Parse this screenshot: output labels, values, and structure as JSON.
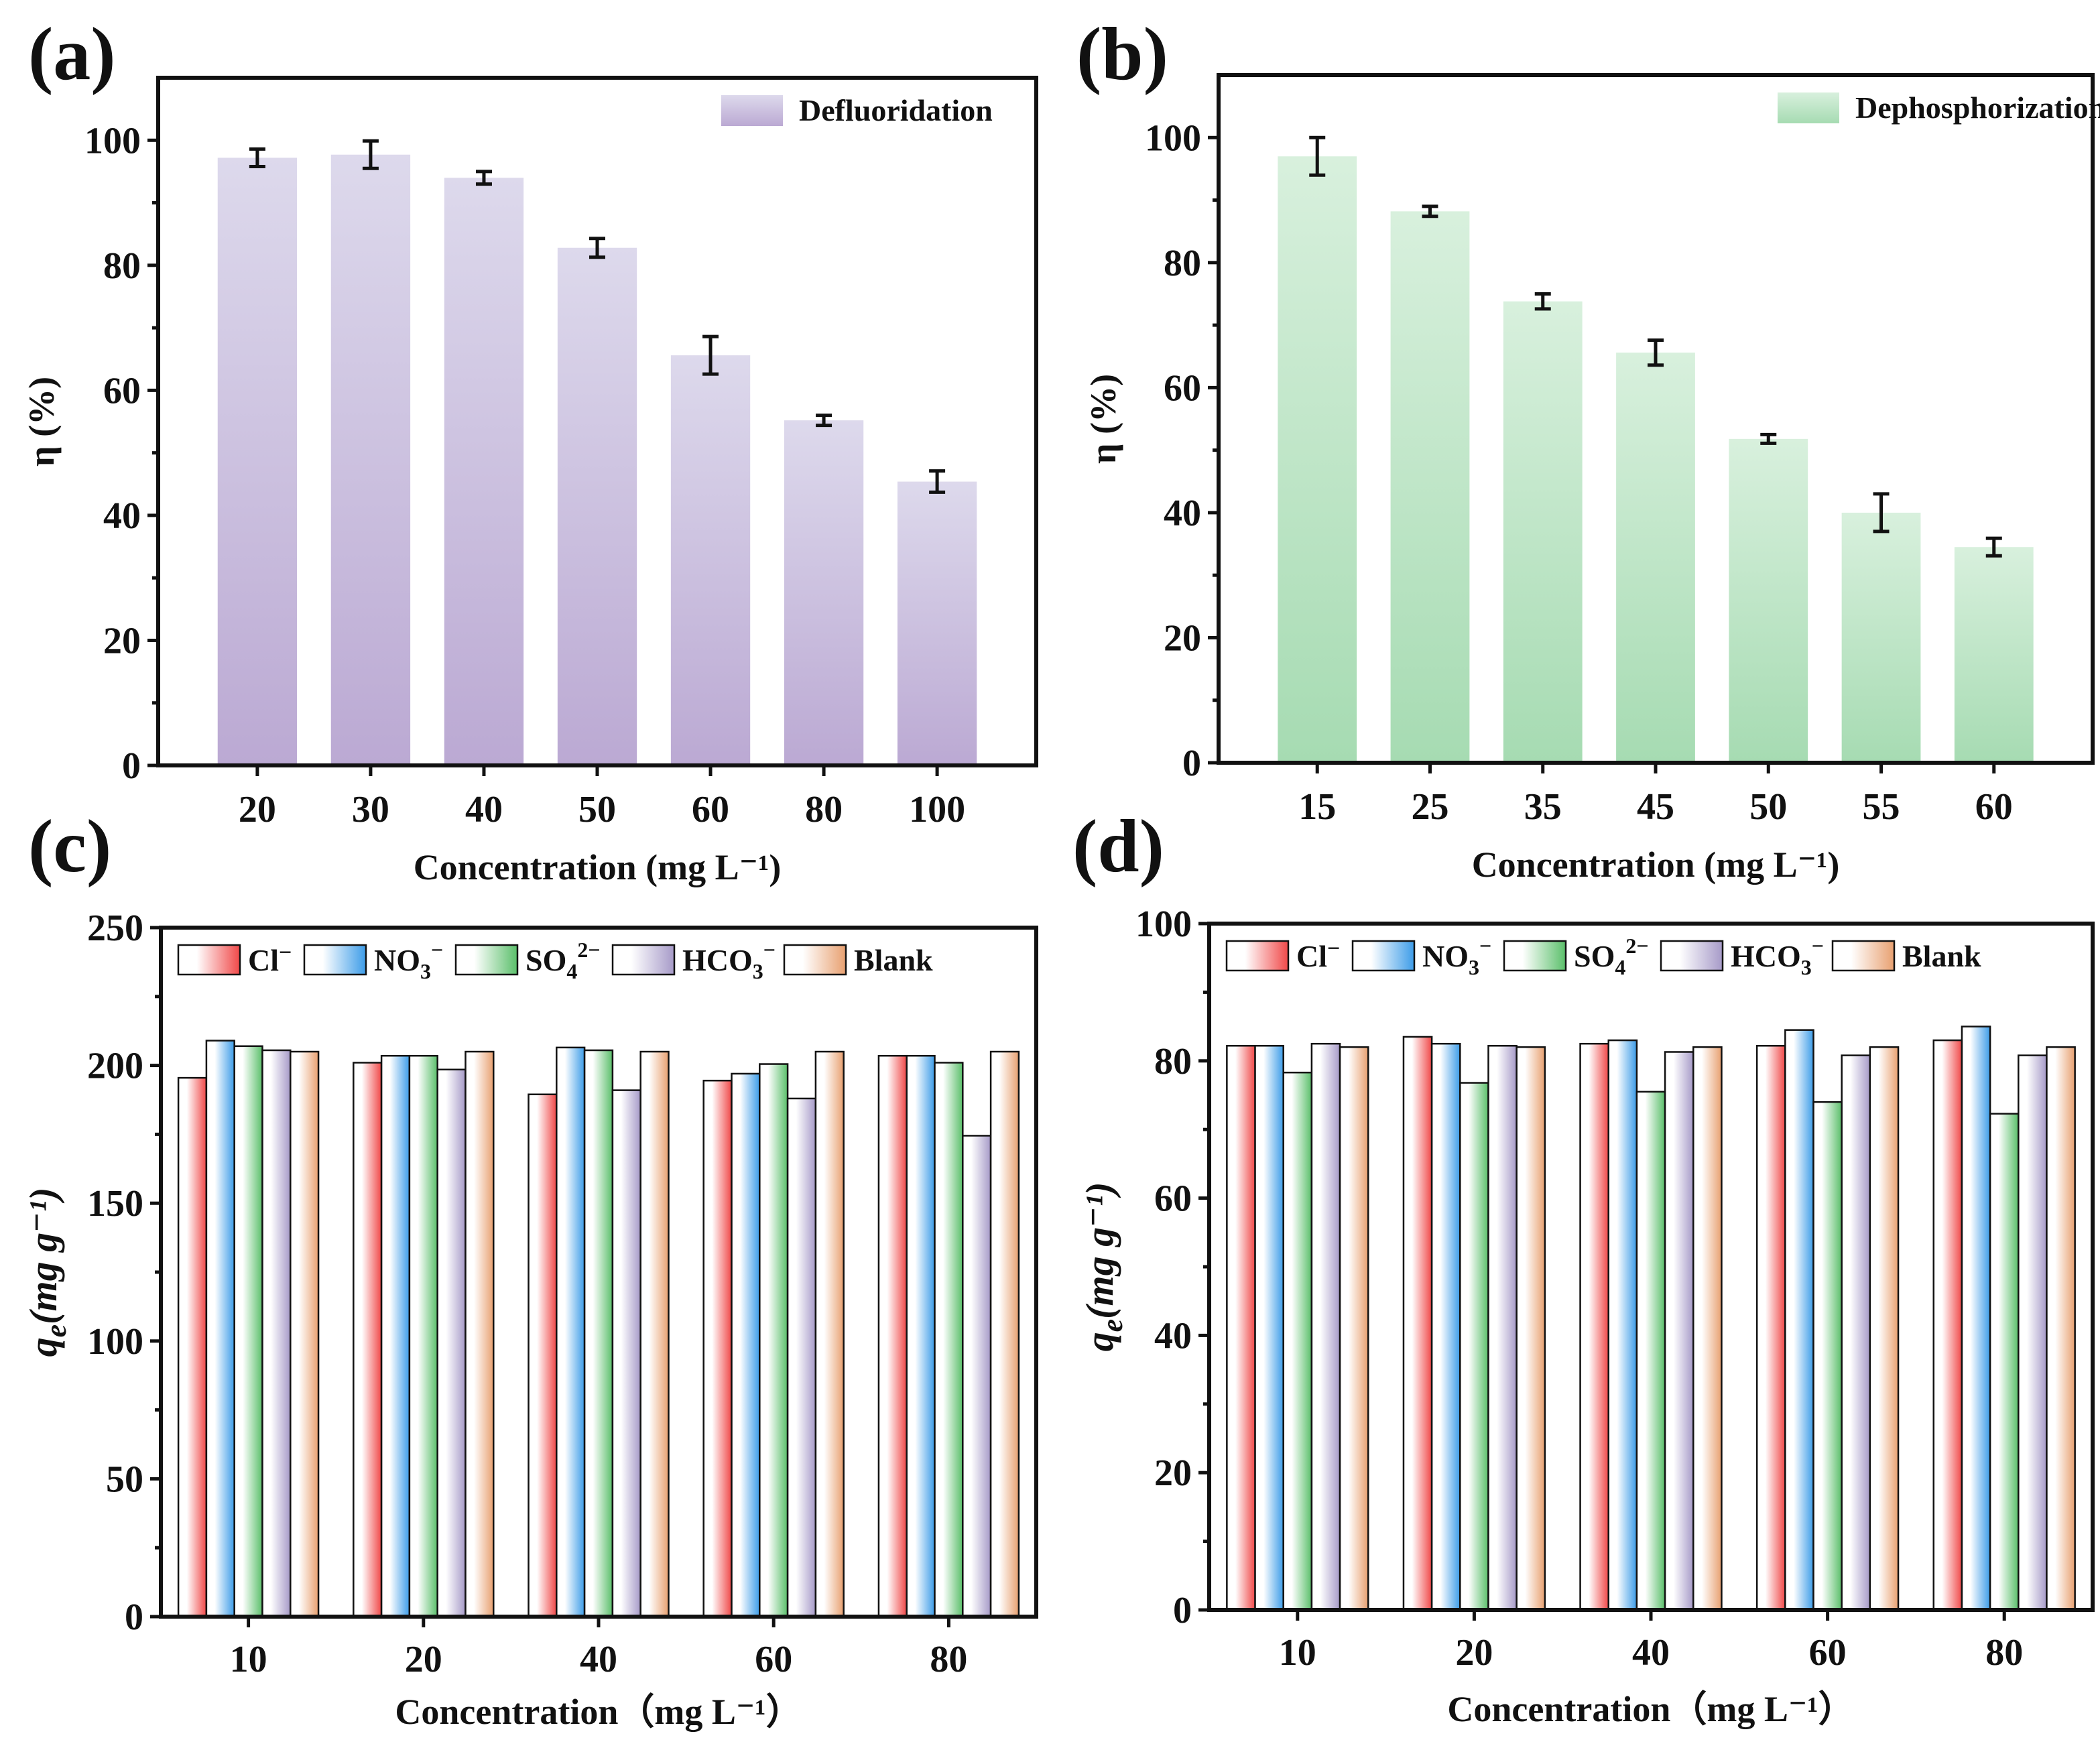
{
  "figure": {
    "panels": [
      "(a)",
      "(b)",
      "(c)",
      "(d)"
    ]
  },
  "chart_data": [
    {
      "id": "a",
      "type": "bar",
      "panel_label": "(a)",
      "title": "",
      "xlabel": "Concentration (mg L⁻¹)",
      "ylabel": "η (%)",
      "ylim": [
        0,
        110
      ],
      "yticks": [
        0,
        20,
        40,
        60,
        80,
        100
      ],
      "categories": [
        "20",
        "30",
        "40",
        "50",
        "60",
        "80",
        "100"
      ],
      "series": [
        {
          "name": "Defluoridation",
          "color_top": "#ddd9ec",
          "color_bottom": "#bba9d3",
          "values": [
            97.2,
            97.7,
            94.0,
            82.8,
            65.6,
            55.2,
            45.4
          ],
          "errors": [
            1.4,
            2.2,
            1.0,
            1.5,
            3.0,
            0.8,
            1.7
          ]
        }
      ],
      "legend": "top-right"
    },
    {
      "id": "b",
      "type": "bar",
      "panel_label": "(b)",
      "title": "",
      "xlabel": "Concentration (mg L⁻¹)",
      "ylabel": "η (%)",
      "ylim": [
        0,
        110
      ],
      "yticks": [
        0,
        20,
        40,
        60,
        80,
        100
      ],
      "categories": [
        "15",
        "25",
        "35",
        "45",
        "50",
        "55",
        "60"
      ],
      "series": [
        {
          "name": "Dephosphorization",
          "color_top": "#d8f0dd",
          "color_bottom": "#a6dbb2",
          "values": [
            97.0,
            88.2,
            73.8,
            65.6,
            51.8,
            40.0,
            34.5
          ],
          "errors": [
            3.0,
            0.8,
            1.2,
            2.0,
            0.7,
            3.0,
            1.4
          ]
        }
      ],
      "legend": "top-right"
    },
    {
      "id": "c",
      "type": "bar",
      "panel_label": "(c)",
      "title": "",
      "xlabel": "Concentration（mg L⁻¹）",
      "ylabel": "q",
      "ylabel_sub": "e",
      "ylabel_units": "(mg g⁻¹)",
      "ylim": [
        0,
        250
      ],
      "yticks": [
        0,
        50,
        100,
        150,
        200,
        250
      ],
      "categories": [
        "10",
        "20",
        "40",
        "60",
        "80"
      ],
      "series": [
        {
          "name": "Cl⁻",
          "base": "Cl",
          "sub": "",
          "sup": "−",
          "color": "#f04848",
          "values": [
            195.5,
            201.0,
            189.5,
            194.5,
            203.5
          ]
        },
        {
          "name": "NO₃⁻",
          "base": "NO",
          "sub": "3",
          "sup": "−",
          "color": "#3c9ce8",
          "values": [
            209.0,
            203.5,
            206.5,
            197.0,
            203.5
          ]
        },
        {
          "name": "SO₄²⁻",
          "base": "SO",
          "sub": "4",
          "sup": "2−",
          "color": "#5abf6a",
          "values": [
            207.0,
            203.5,
            205.5,
            200.5,
            201.0
          ]
        },
        {
          "name": "HCO₃⁻",
          "base": "HCO",
          "sub": "3",
          "sup": "−",
          "color": "#a69ac8",
          "values": [
            205.5,
            198.5,
            191.0,
            188.0,
            174.5
          ]
        },
        {
          "name": "Blank",
          "base": "Blank",
          "sub": "",
          "sup": "",
          "color": "#e8a070",
          "values": [
            205.0,
            205.0,
            205.0,
            205.0,
            205.0
          ]
        }
      ],
      "legend": "top-left"
    },
    {
      "id": "d",
      "type": "bar",
      "panel_label": "(d)",
      "title": "",
      "xlabel": "Concentration（mg L⁻¹）",
      "ylabel": "q",
      "ylabel_sub": "e",
      "ylabel_units": "(mg g⁻¹)",
      "ylim": [
        0,
        100
      ],
      "yticks": [
        0,
        20,
        40,
        60,
        80,
        100
      ],
      "categories": [
        "10",
        "20",
        "40",
        "60",
        "80"
      ],
      "series": [
        {
          "name": "Cl⁻",
          "base": "Cl",
          "sub": "",
          "sup": "−",
          "color": "#f04848",
          "values": [
            82.2,
            83.5,
            82.5,
            82.2,
            83.0
          ]
        },
        {
          "name": "NO₃⁻",
          "base": "NO",
          "sub": "3",
          "sup": "−",
          "color": "#3c9ce8",
          "values": [
            82.2,
            82.5,
            83.0,
            84.5,
            85.0
          ]
        },
        {
          "name": "SO₄²⁻",
          "base": "SO",
          "sub": "4",
          "sup": "2−",
          "color": "#5abf6a",
          "values": [
            78.3,
            76.8,
            75.5,
            74.0,
            72.3
          ]
        },
        {
          "name": "HCO₃⁻",
          "base": "HCO",
          "sub": "3",
          "sup": "−",
          "color": "#a69ac8",
          "values": [
            82.5,
            82.2,
            81.3,
            80.8,
            80.8
          ]
        },
        {
          "name": "Blank",
          "base": "Blank",
          "sub": "",
          "sup": "",
          "color": "#e8a070",
          "values": [
            82.0,
            82.0,
            82.0,
            82.0,
            82.0
          ]
        }
      ],
      "legend": "top-left"
    }
  ]
}
